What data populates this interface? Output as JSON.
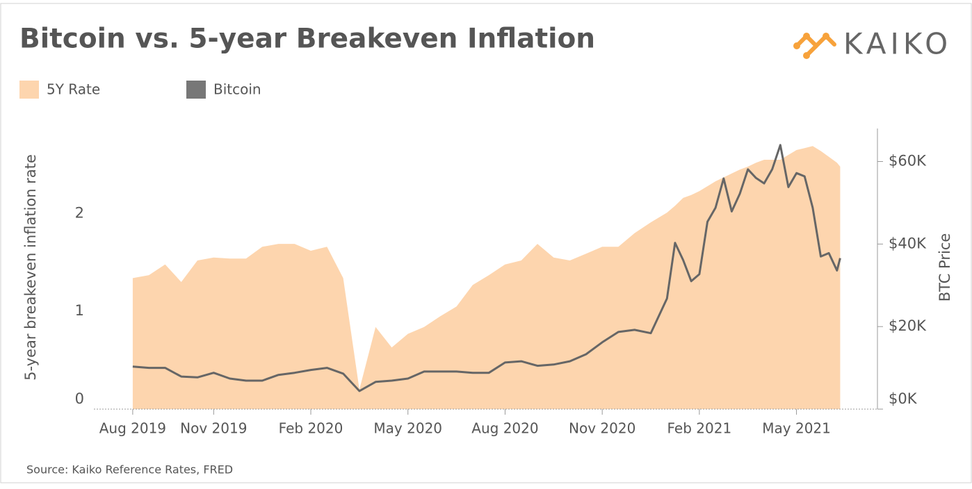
{
  "chart_data": {
    "type": "line",
    "title": "Bitcoin vs. 5-year Breakeven Inflation",
    "brand": "KAIKO",
    "source": "Source: Kaiko Reference Rates, FRED",
    "ylabel": "5-year breakeven inflation rate",
    "y2label": "BTC Price",
    "x": [
      0.5,
      1,
      1.5,
      2,
      2.5,
      3,
      3.5,
      4,
      4.5,
      5,
      5.5,
      6,
      6.5,
      7,
      7.5,
      8,
      8.5,
      9,
      9.5,
      10,
      10.5,
      11,
      11.5,
      12,
      12.5,
      13,
      13.5,
      14,
      14.5,
      15,
      15.5,
      16,
      16.5,
      17,
      17.25,
      17.5,
      17.75,
      18,
      18.25,
      18.5,
      18.75,
      19,
      19.25,
      19.5,
      19.75,
      20,
      20.25,
      20.5,
      20.75,
      21,
      21.25,
      21.5,
      21.75,
      22,
      22.25,
      22.35
    ],
    "xlim": [
      -0.7,
      23.5
    ],
    "xticks": [
      {
        "value": 0.5,
        "label": "Aug 2019"
      },
      {
        "value": 3,
        "label": "Nov 2019"
      },
      {
        "value": 6,
        "label": "Feb 2020"
      },
      {
        "value": 9,
        "label": "May 2020"
      },
      {
        "value": 12,
        "label": "Aug 2020"
      },
      {
        "value": 15,
        "label": "Nov 2020"
      },
      {
        "value": 18,
        "label": "Feb 2021"
      },
      {
        "value": 21,
        "label": "May 2021"
      }
    ],
    "ylim": [
      0,
      2.87
    ],
    "yticks": [
      0,
      1,
      2
    ],
    "y2lim": [
      0,
      68000
    ],
    "y2ticks": [
      {
        "value": 0,
        "label": "$0K"
      },
      {
        "value": 20000,
        "label": "$20K"
      },
      {
        "value": 40000,
        "label": "$40K"
      },
      {
        "value": 60000,
        "label": "$60K"
      }
    ],
    "series": [
      {
        "name": "5Y Rate",
        "color": "#fdd5ae",
        "mark": "area",
        "values": [
          1.34,
          1.37,
          1.48,
          1.3,
          1.52,
          1.55,
          1.54,
          1.54,
          1.66,
          1.69,
          1.69,
          1.62,
          1.66,
          1.34,
          0.2,
          0.84,
          0.63,
          0.77,
          0.84,
          0.95,
          1.05,
          1.27,
          1.37,
          1.48,
          1.52,
          1.69,
          1.55,
          1.52,
          1.59,
          1.66,
          1.66,
          1.8,
          1.91,
          2.01,
          2.08,
          2.16,
          2.19,
          2.23,
          2.28,
          2.33,
          2.37,
          2.41,
          2.45,
          2.48,
          2.52,
          2.55,
          2.55,
          2.55,
          2.6,
          2.65,
          2.67,
          2.69,
          2.64,
          2.58,
          2.52,
          2.48
        ]
      },
      {
        "name": "Bitcoin",
        "color": "#666666",
        "mark": "line",
        "axis": "y2",
        "values": [
          10300,
          10000,
          10000,
          7900,
          7700,
          8800,
          7400,
          6900,
          6900,
          8300,
          8800,
          9500,
          10000,
          8600,
          4400,
          6600,
          6900,
          7400,
          9100,
          9100,
          9100,
          8800,
          8800,
          11300,
          11600,
          10500,
          10800,
          11600,
          13300,
          16200,
          18700,
          19200,
          18400,
          26800,
          40300,
          36100,
          31000,
          32700,
          45400,
          48800,
          55900,
          47900,
          52200,
          58100,
          56000,
          54700,
          58100,
          64000,
          53800,
          57200,
          56400,
          48800,
          37000,
          37800,
          33600,
          36600
        ]
      }
    ]
  }
}
